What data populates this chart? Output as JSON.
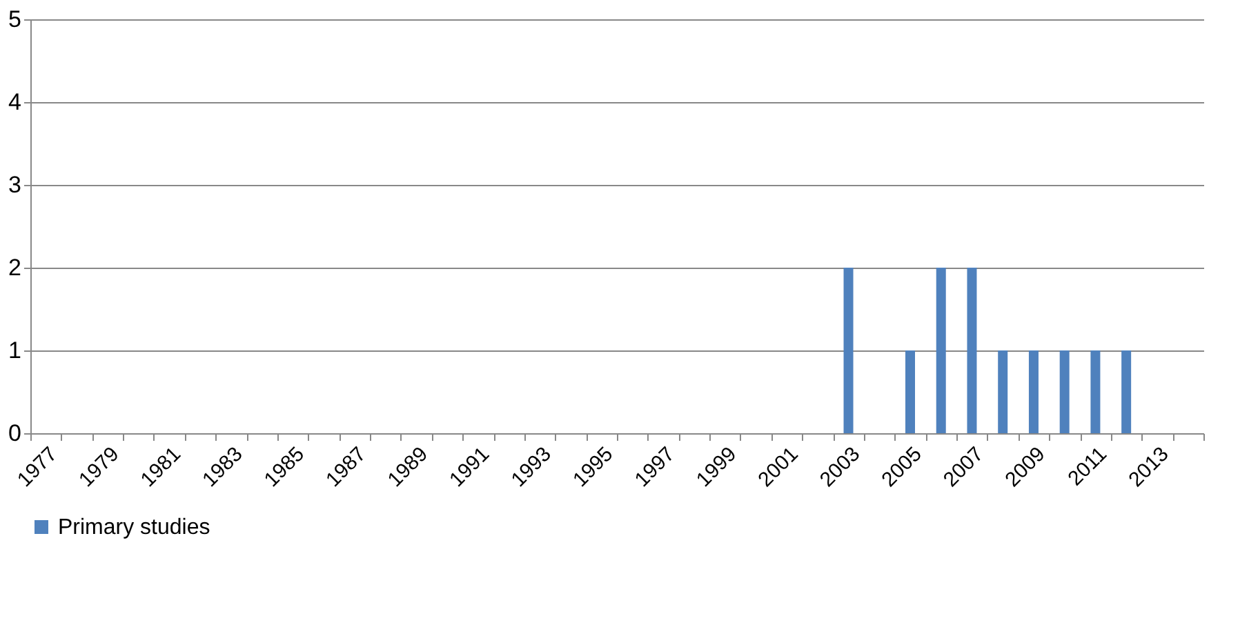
{
  "chart_data": {
    "type": "bar",
    "categories": [
      "1977",
      null,
      "1979",
      null,
      "1981",
      null,
      "1983",
      null,
      "1985",
      null,
      "1987",
      null,
      "1989",
      null,
      "1991",
      null,
      "1993",
      null,
      "1995",
      null,
      "1997",
      null,
      "1999",
      null,
      "2001",
      null,
      "2003",
      null,
      "2005",
      null,
      "2007",
      null,
      "2009",
      null,
      "2011",
      null,
      "2013",
      null
    ],
    "series": [
      {
        "name": "Primary studies",
        "color": "#4f81bd",
        "values": [
          0,
          0,
          0,
          0,
          0,
          0,
          0,
          0,
          0,
          0,
          0,
          0,
          0,
          0,
          0,
          0,
          0,
          0,
          0,
          0,
          0,
          0,
          0,
          0,
          0,
          0,
          2,
          0,
          1,
          2,
          2,
          1,
          1,
          1,
          1,
          1,
          0,
          0
        ]
      }
    ],
    "ylim": [
      0,
      5
    ],
    "yticks": [
      0,
      1,
      2,
      3,
      4,
      5
    ],
    "grid": "y",
    "legend": "bottom"
  }
}
